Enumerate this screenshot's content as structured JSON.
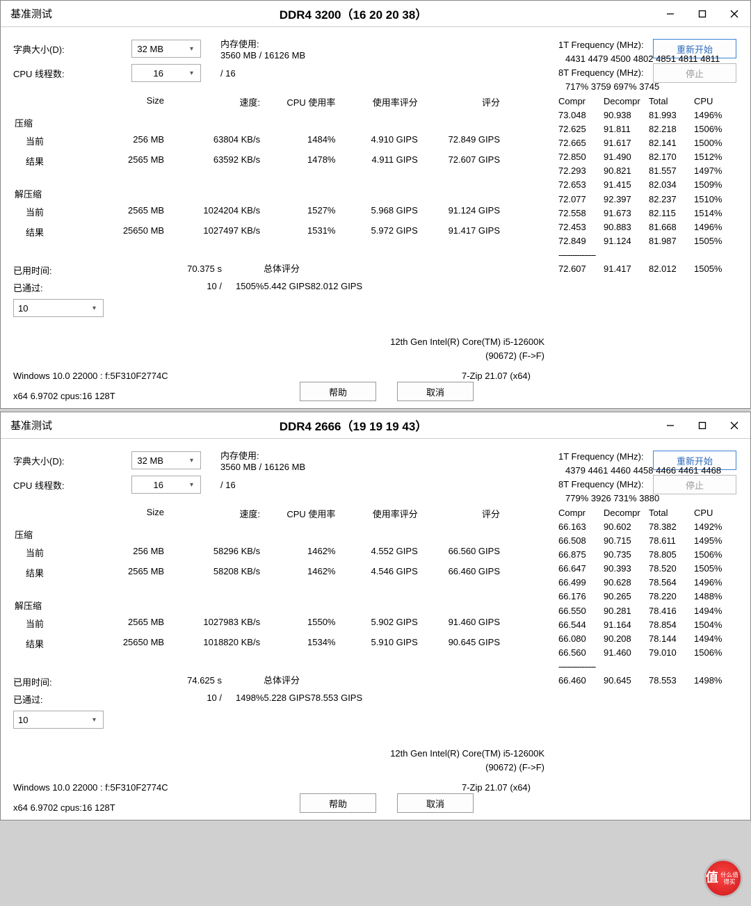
{
  "watermark": {
    "ch": "值",
    "txt": "什么值得买"
  },
  "windows": [
    {
      "title_left": "基准测试",
      "title_center": "DDR4 3200（16 20 20 38）",
      "dict_label": "字典大小(D):",
      "dict_value": "32 MB",
      "mem_label": "内存使用:",
      "mem_value": "3560 MB / 16126 MB",
      "threads_label": "CPU 线程数:",
      "threads_value": "16",
      "threads_total": "/ 16",
      "btn_restart": "重新开始",
      "btn_stop": "停止",
      "table": {
        "headers": {
          "size": "Size",
          "speed": "速度:",
          "cpu": "CPU 使用率",
          "rating1": "使用率评分",
          "rating2": "评分"
        },
        "compress": {
          "label": "压缩",
          "current": {
            "label": "当前",
            "size": "256 MB",
            "speed": "63804 KB/s",
            "cpu": "1484%",
            "r1": "4.910 GIPS",
            "r2": "72.849 GIPS"
          },
          "result": {
            "label": "结果",
            "size": "2565 MB",
            "speed": "63592 KB/s",
            "cpu": "1478%",
            "r1": "4.911 GIPS",
            "r2": "72.607 GIPS"
          }
        },
        "decompress": {
          "label": "解压缩",
          "current": {
            "label": "当前",
            "size": "2565 MB",
            "speed": "1024204 KB/s",
            "cpu": "1527%",
            "r1": "5.968 GIPS",
            "r2": "91.124 GIPS"
          },
          "result": {
            "label": "结果",
            "size": "25650 MB",
            "speed": "1027497 KB/s",
            "cpu": "1531%",
            "r1": "5.972 GIPS",
            "r2": "91.417 GIPS"
          }
        }
      },
      "lower": {
        "elapsed_k": "已用时间:",
        "elapsed_v": "70.375 s",
        "passes_k": "已通过:",
        "passes_v": "10 /",
        "combo": "10",
        "overall_k": "总体评分",
        "overall": {
          "cpu": "1505%",
          "r1": "5.442 GIPS",
          "r2": "82.012 GIPS"
        }
      },
      "cpu1": "12th Gen Intel(R) Core(TM) i5-12600K",
      "cpu2": "(90672) (F->F)",
      "os": "Windows 10.0 22000 :  f:5F310F2774C",
      "zip": "7-Zip 21.07 (x64)",
      "arch": "x64 6.9702 cpus:16 128T",
      "btn_help": "帮助",
      "btn_cancel": "取消",
      "stats": {
        "t1": "1T Frequency (MHz):",
        "t1v": "4431 4479 4500 4802 4851 4811 4811",
        "t8": "8T Frequency (MHz):",
        "t8v": "717% 3759 697% 3745",
        "cols": {
          "a": "Compr",
          "b": "Decompr",
          "c": "Total",
          "d": "CPU"
        },
        "rows": [
          [
            "73.048",
            "90.938",
            "81.993",
            "1496%"
          ],
          [
            "72.625",
            "91.811",
            "82.218",
            "1506%"
          ],
          [
            "72.665",
            "91.617",
            "82.141",
            "1500%"
          ],
          [
            "72.850",
            "91.490",
            "82.170",
            "1512%"
          ],
          [
            "72.293",
            "90.821",
            "81.557",
            "1497%"
          ],
          [
            "72.653",
            "91.415",
            "82.034",
            "1509%"
          ],
          [
            "72.077",
            "92.397",
            "82.237",
            "1510%"
          ],
          [
            "72.558",
            "91.673",
            "82.115",
            "1514%"
          ],
          [
            "72.453",
            "90.883",
            "81.668",
            "1496%"
          ],
          [
            "72.849",
            "91.124",
            "81.987",
            "1505%"
          ]
        ],
        "sep": "----------------",
        "summary": [
          "72.607",
          "91.417",
          "82.012",
          "1505%"
        ]
      }
    },
    {
      "title_left": "基准测试",
      "title_center": "DDR4 2666（19 19 19 43）",
      "dict_label": "字典大小(D):",
      "dict_value": "32 MB",
      "mem_label": "内存使用:",
      "mem_value": "3560 MB / 16126 MB",
      "threads_label": "CPU 线程数:",
      "threads_value": "16",
      "threads_total": "/ 16",
      "btn_restart": "重新开始",
      "btn_stop": "停止",
      "table": {
        "headers": {
          "size": "Size",
          "speed": "速度:",
          "cpu": "CPU 使用率",
          "rating1": "使用率评分",
          "rating2": "评分"
        },
        "compress": {
          "label": "压缩",
          "current": {
            "label": "当前",
            "size": "256 MB",
            "speed": "58296 KB/s",
            "cpu": "1462%",
            "r1": "4.552 GIPS",
            "r2": "66.560 GIPS"
          },
          "result": {
            "label": "结果",
            "size": "2565 MB",
            "speed": "58208 KB/s",
            "cpu": "1462%",
            "r1": "4.546 GIPS",
            "r2": "66.460 GIPS"
          }
        },
        "decompress": {
          "label": "解压缩",
          "current": {
            "label": "当前",
            "size": "2565 MB",
            "speed": "1027983 KB/s",
            "cpu": "1550%",
            "r1": "5.902 GIPS",
            "r2": "91.460 GIPS"
          },
          "result": {
            "label": "结果",
            "size": "25650 MB",
            "speed": "1018820 KB/s",
            "cpu": "1534%",
            "r1": "5.910 GIPS",
            "r2": "90.645 GIPS"
          }
        }
      },
      "lower": {
        "elapsed_k": "已用时间:",
        "elapsed_v": "74.625 s",
        "passes_k": "已通过:",
        "passes_v": "10 /",
        "combo": "10",
        "overall_k": "总体评分",
        "overall": {
          "cpu": "1498%",
          "r1": "5.228 GIPS",
          "r2": "78.553 GIPS"
        }
      },
      "cpu1": "12th Gen Intel(R) Core(TM) i5-12600K",
      "cpu2": "(90672) (F->F)",
      "os": "Windows 10.0 22000 :  f:5F310F2774C",
      "zip": "7-Zip 21.07 (x64)",
      "arch": "x64 6.9702 cpus:16 128T",
      "btn_help": "帮助",
      "btn_cancel": "取消",
      "stats": {
        "t1": "1T Frequency (MHz):",
        "t1v": "4379 4461 4460 4458 4466 4461 4468",
        "t8": "8T Frequency (MHz):",
        "t8v": "779% 3926 731% 3880",
        "cols": {
          "a": "Compr",
          "b": "Decompr",
          "c": "Total",
          "d": "CPU"
        },
        "rows": [
          [
            "66.163",
            "90.602",
            "78.382",
            "1492%"
          ],
          [
            "66.508",
            "90.715",
            "78.611",
            "1495%"
          ],
          [
            "66.875",
            "90.735",
            "78.805",
            "1506%"
          ],
          [
            "66.647",
            "90.393",
            "78.520",
            "1505%"
          ],
          [
            "66.499",
            "90.628",
            "78.564",
            "1496%"
          ],
          [
            "66.176",
            "90.265",
            "78.220",
            "1488%"
          ],
          [
            "66.550",
            "90.281",
            "78.416",
            "1494%"
          ],
          [
            "66.544",
            "91.164",
            "78.854",
            "1504%"
          ],
          [
            "66.080",
            "90.208",
            "78.144",
            "1494%"
          ],
          [
            "66.560",
            "91.460",
            "79.010",
            "1506%"
          ]
        ],
        "sep": "----------------",
        "summary": [
          "66.460",
          "90.645",
          "78.553",
          "1498%"
        ]
      }
    }
  ]
}
